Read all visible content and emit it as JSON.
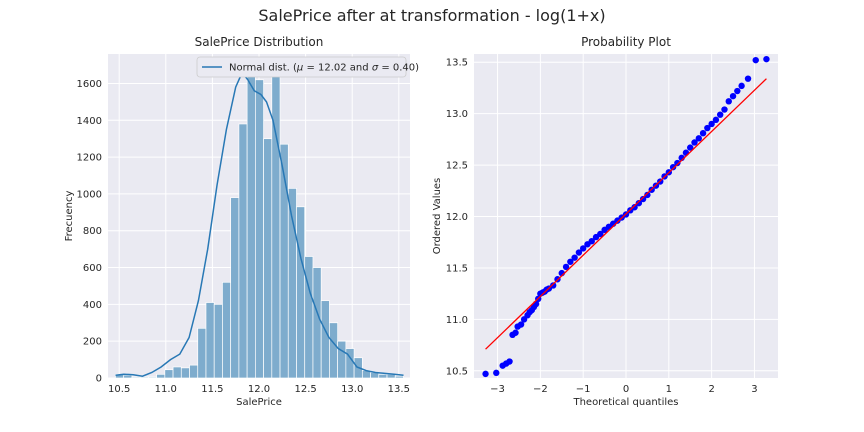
{
  "figure": {
    "suptitle": "SalePrice after at transformation - log(1+x)"
  },
  "colors": {
    "panel_bg": "#eaeaf2",
    "grid": "#ffffff",
    "hist_fill": "#7eaccd",
    "hist_edge": "#ffffff",
    "kde_line": "#2878b5",
    "qq_points": "#0000ff",
    "qq_line": "#ff0000"
  },
  "chart_data": [
    {
      "type": "bar",
      "title": "SalePrice Distribution",
      "xlabel": "SalePrice",
      "ylabel": "Frecuency",
      "xlim": [
        10.38,
        13.62
      ],
      "ylim": [
        0,
        1760
      ],
      "xticks": [
        "10.5",
        "11.0",
        "11.5",
        "12.0",
        "12.5",
        "13.0",
        "13.5"
      ],
      "yticks": [
        "0",
        "200",
        "400",
        "600",
        "800",
        "1000",
        "1200",
        "1400",
        "1600"
      ],
      "legend": {
        "label": "Normal dist. ($\\mu=$ 12.02 and $\\sigma=$ 0.40)",
        "placement": "top-right"
      },
      "bins": {
        "edges": [
          10.46,
          10.5483,
          10.6366,
          10.7249,
          10.8131,
          10.9014,
          10.9897,
          11.078,
          11.1663,
          11.2546,
          11.3429,
          11.4311,
          11.5194,
          11.6077,
          11.696,
          11.7843,
          11.8726,
          11.9609,
          12.0491,
          12.1374,
          12.2257,
          12.314,
          12.4023,
          12.4906,
          12.5789,
          12.6671,
          12.7554,
          12.8437,
          12.932,
          13.0203,
          13.1086,
          13.1969,
          13.2851,
          13.3734,
          13.4617,
          13.55
        ],
        "counts": [
          20,
          15,
          5,
          5,
          5,
          20,
          45,
          60,
          55,
          70,
          270,
          410,
          400,
          520,
          980,
          1380,
          1650,
          1620,
          1300,
          1650,
          1270,
          1030,
          930,
          660,
          600,
          420,
          300,
          200,
          160,
          110,
          40,
          30,
          20,
          20,
          10
        ]
      },
      "kde": {
        "x": [
          10.46,
          10.55,
          10.65,
          10.75,
          10.85,
          10.95,
          11.05,
          11.15,
          11.25,
          11.35,
          11.45,
          11.55,
          11.65,
          11.75,
          11.82,
          11.88,
          11.95,
          12.02,
          12.08,
          12.15,
          12.25,
          12.35,
          12.45,
          12.55,
          12.65,
          12.75,
          12.85,
          12.95,
          13.05,
          13.15,
          13.25,
          13.35,
          13.45,
          13.55
        ],
        "y": [
          15,
          20,
          18,
          10,
          30,
          60,
          100,
          130,
          220,
          420,
          700,
          1050,
          1350,
          1580,
          1660,
          1620,
          1560,
          1540,
          1500,
          1400,
          1150,
          880,
          650,
          460,
          320,
          220,
          160,
          130,
          60,
          40,
          30,
          25,
          20,
          15
        ]
      }
    },
    {
      "type": "scatter",
      "title": "Probability Plot",
      "xlabel": "Theoretical quantiles",
      "ylabel": "Ordered Values",
      "xlim": [
        -3.55,
        3.55
      ],
      "ylim": [
        10.43,
        13.58
      ],
      "xticks": [
        "−3",
        "−2",
        "−1",
        "0",
        "1",
        "2",
        "3"
      ],
      "yticks": [
        "10.5",
        "11.0",
        "11.5",
        "12.0",
        "12.5",
        "13.0",
        "13.5"
      ],
      "fit_line": {
        "x": [
          -3.28,
          3.28
        ],
        "y": [
          10.71,
          13.34
        ]
      },
      "points": [
        [
          -3.28,
          10.47
        ],
        [
          -3.03,
          10.48
        ],
        [
          -2.88,
          10.55
        ],
        [
          -2.8,
          10.57
        ],
        [
          -2.72,
          10.59
        ],
        [
          -2.65,
          10.85
        ],
        [
          -2.58,
          10.87
        ],
        [
          -2.53,
          10.93
        ],
        [
          -2.45,
          10.95
        ],
        [
          -2.38,
          11.0
        ],
        [
          -2.3,
          11.04
        ],
        [
          -2.25,
          11.07
        ],
        [
          -2.2,
          11.09
        ],
        [
          -2.15,
          11.12
        ],
        [
          -2.1,
          11.15
        ],
        [
          -2.05,
          11.2
        ],
        [
          -2.0,
          11.25
        ],
        [
          -1.95,
          11.26
        ],
        [
          -1.9,
          11.27
        ],
        [
          -1.85,
          11.29
        ],
        [
          -1.8,
          11.3
        ],
        [
          -1.7,
          11.33
        ],
        [
          -1.6,
          11.39
        ],
        [
          -1.5,
          11.45
        ],
        [
          -1.4,
          11.51
        ],
        [
          -1.3,
          11.56
        ],
        [
          -1.2,
          11.6
        ],
        [
          -1.1,
          11.65
        ],
        [
          -1.0,
          11.69
        ],
        [
          -0.9,
          11.73
        ],
        [
          -0.8,
          11.76
        ],
        [
          -0.7,
          11.8
        ],
        [
          -0.6,
          11.83
        ],
        [
          -0.5,
          11.87
        ],
        [
          -0.4,
          11.9
        ],
        [
          -0.3,
          11.93
        ],
        [
          -0.2,
          11.96
        ],
        [
          -0.1,
          11.99
        ],
        [
          0.0,
          12.02
        ],
        [
          0.1,
          12.06
        ],
        [
          0.2,
          12.09
        ],
        [
          0.3,
          12.13
        ],
        [
          0.4,
          12.17
        ],
        [
          0.5,
          12.21
        ],
        [
          0.6,
          12.26
        ],
        [
          0.7,
          12.3
        ],
        [
          0.8,
          12.34
        ],
        [
          0.9,
          12.39
        ],
        [
          1.0,
          12.43
        ],
        [
          1.1,
          12.48
        ],
        [
          1.2,
          12.52
        ],
        [
          1.3,
          12.57
        ],
        [
          1.4,
          12.62
        ],
        [
          1.5,
          12.67
        ],
        [
          1.6,
          12.72
        ],
        [
          1.7,
          12.76
        ],
        [
          1.8,
          12.81
        ],
        [
          1.9,
          12.86
        ],
        [
          2.0,
          12.9
        ],
        [
          2.1,
          12.94
        ],
        [
          2.2,
          12.99
        ],
        [
          2.3,
          13.04
        ],
        [
          2.4,
          13.12
        ],
        [
          2.5,
          13.17
        ],
        [
          2.6,
          13.22
        ],
        [
          2.7,
          13.27
        ],
        [
          2.85,
          13.34
        ],
        [
          3.03,
          13.52
        ],
        [
          3.28,
          13.53
        ]
      ]
    }
  ]
}
